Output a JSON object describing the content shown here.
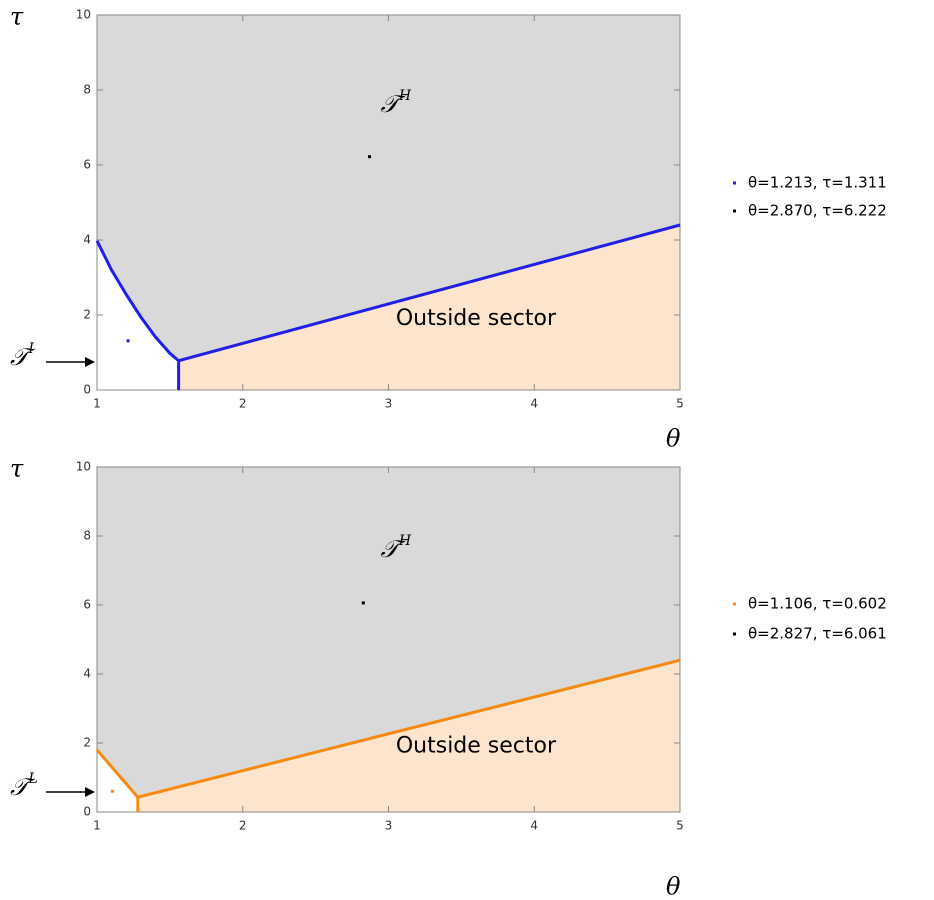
{
  "chart_data": [
    {
      "type": "region",
      "xlabel": "θ",
      "ylabel": "τ",
      "xlim": [
        1,
        5
      ],
      "ylim": [
        0,
        10
      ],
      "xticks": [
        1,
        2,
        3,
        4,
        5
      ],
      "yticks": [
        0,
        2,
        4,
        6,
        8,
        10
      ],
      "region_colors": {
        "upper": "#d9d9d9",
        "sector": "#fde4cd"
      },
      "boundary": {
        "color": "#1f1fe6",
        "x": [
          1,
          1.1,
          1.2,
          1.3,
          1.4,
          1.5,
          1.56,
          5
        ],
        "y": [
          3.98,
          3.2,
          2.55,
          1.95,
          1.42,
          0.98,
          0.78,
          4.4
        ]
      },
      "stem": {
        "x": [
          1.56,
          1.56
        ],
        "y": [
          0.78,
          0
        ]
      },
      "annotations": [
        {
          "text": "𝒯",
          "sup": "H"
        },
        {
          "text": "Outside sector"
        },
        {
          "text": "𝒯",
          "sup": "I"
        }
      ],
      "series": [
        {
          "name": "θ=1.213, τ=1.311",
          "color": "#1f1fe6",
          "x": [
            1.213
          ],
          "values": [
            1.311
          ]
        },
        {
          "name": "θ=2.870, τ=6.222",
          "color": "#000000",
          "x": [
            2.87
          ],
          "values": [
            6.222
          ]
        }
      ]
    },
    {
      "type": "region",
      "xlabel": "θ",
      "ylabel": "τ",
      "xlim": [
        1,
        5
      ],
      "ylim": [
        0,
        10
      ],
      "xticks": [
        1,
        2,
        3,
        4,
        5
      ],
      "yticks": [
        0,
        2,
        4,
        6,
        8,
        10
      ],
      "region_colors": {
        "upper": "#d9d9d9",
        "sector": "#fde4cd"
      },
      "boundary": {
        "color": "#f58a12",
        "x": [
          1,
          1.28,
          5
        ],
        "y": [
          1.8,
          0.43,
          4.4
        ]
      },
      "stem": {
        "x": [
          1.28,
          1.28
        ],
        "y": [
          0.43,
          0
        ]
      },
      "annotations": [
        {
          "text": "𝒯",
          "sup": "H"
        },
        {
          "text": "Outside sector"
        },
        {
          "text": "𝒯",
          "sup": "L"
        }
      ],
      "series": [
        {
          "name": "θ=1.106, τ=0.602",
          "color": "#f58a12",
          "x": [
            1.106
          ],
          "values": [
            0.602
          ]
        },
        {
          "name": "θ=2.827, τ=6.061",
          "color": "#000000",
          "x": [
            2.827
          ],
          "values": [
            6.061
          ]
        }
      ]
    }
  ]
}
